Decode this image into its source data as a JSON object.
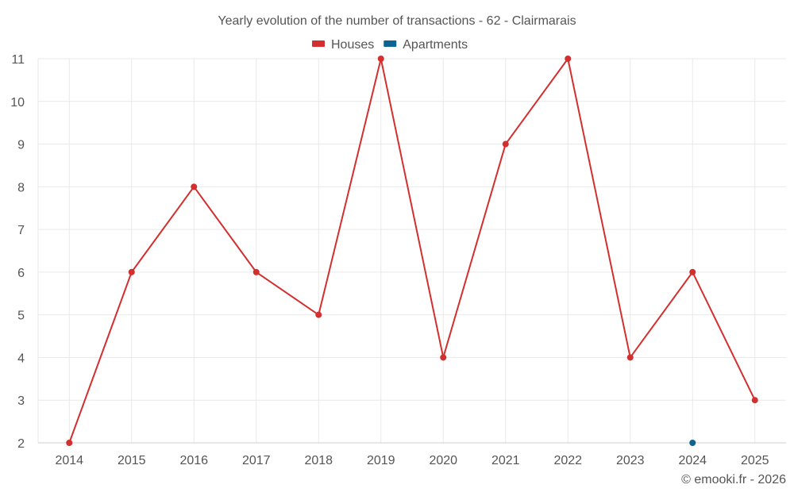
{
  "credit": "© emooki.fr - 2026",
  "chart_data": {
    "type": "line",
    "title": "Yearly evolution of the number of transactions - 62 - Clairmarais",
    "xlabel": "",
    "ylabel": "",
    "categories": [
      "2014",
      "2015",
      "2016",
      "2017",
      "2018",
      "2019",
      "2020",
      "2021",
      "2022",
      "2023",
      "2024",
      "2025"
    ],
    "ylim": [
      2,
      11
    ],
    "yticks": [
      2,
      3,
      4,
      5,
      6,
      7,
      8,
      9,
      10,
      11
    ],
    "grid": true,
    "legend_position": "top-center",
    "series": [
      {
        "name": "Houses",
        "color": "#d32f2f",
        "values": [
          2,
          6,
          8,
          6,
          5,
          11,
          4,
          9,
          11,
          4,
          6,
          3
        ]
      },
      {
        "name": "Apartments",
        "color": "#0d6391",
        "values": [
          null,
          null,
          null,
          null,
          null,
          null,
          null,
          null,
          null,
          null,
          2,
          null
        ]
      }
    ]
  }
}
